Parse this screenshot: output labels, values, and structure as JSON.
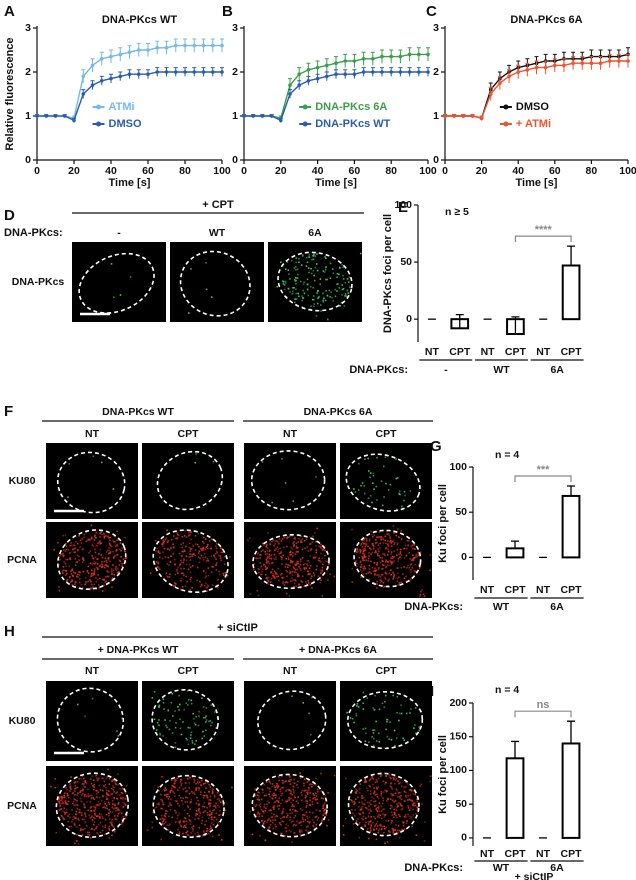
{
  "chart_data": [
    {
      "type": "line",
      "panel": "A",
      "title": "DNA-PKcs WT",
      "xlabel": "Time [s]",
      "ylabel": "Relative fluorescence",
      "x": [
        0,
        5,
        10,
        15,
        20,
        25,
        30,
        35,
        40,
        45,
        50,
        55,
        60,
        65,
        70,
        75,
        80,
        85,
        90,
        95,
        100
      ],
      "xlim": [
        0,
        100
      ],
      "xticks": [
        0,
        20,
        40,
        60,
        80,
        100
      ],
      "ylim": [
        0,
        3
      ],
      "yticks": [
        0,
        1,
        2,
        3
      ],
      "legend": "lower right",
      "series": [
        {
          "name": "ATMi",
          "color": "#74b9e7",
          "values": [
            1,
            1,
            1,
            1,
            0.95,
            1.9,
            2.15,
            2.3,
            2.35,
            2.4,
            2.45,
            2.5,
            2.5,
            2.55,
            2.55,
            2.6,
            2.6,
            2.6,
            2.6,
            2.6,
            2.6
          ],
          "errors": [
            0.03,
            0.03,
            0.03,
            0.03,
            0.05,
            0.15,
            0.15,
            0.15,
            0.15,
            0.15,
            0.15,
            0.15,
            0.15,
            0.15,
            0.15,
            0.15,
            0.15,
            0.15,
            0.15,
            0.15,
            0.15
          ]
        },
        {
          "name": "DMSO",
          "color": "#2a5db0",
          "values": [
            1,
            1,
            1,
            1,
            0.9,
            1.5,
            1.7,
            1.8,
            1.85,
            1.9,
            1.95,
            1.95,
            1.95,
            2,
            2,
            2,
            2,
            2,
            2,
            2,
            2
          ],
          "errors": [
            0.03,
            0.03,
            0.03,
            0.03,
            0.05,
            0.1,
            0.1,
            0.1,
            0.1,
            0.1,
            0.1,
            0.1,
            0.1,
            0.1,
            0.1,
            0.1,
            0.1,
            0.1,
            0.1,
            0.1,
            0.1
          ]
        }
      ]
    },
    {
      "type": "line",
      "panel": "B",
      "xlabel": "Time [s]",
      "x": [
        0,
        5,
        10,
        15,
        20,
        25,
        30,
        35,
        40,
        45,
        50,
        55,
        60,
        65,
        70,
        75,
        80,
        85,
        90,
        95,
        100
      ],
      "xlim": [
        0,
        100
      ],
      "xticks": [
        0,
        20,
        40,
        60,
        80,
        100
      ],
      "ylim": [
        0,
        3
      ],
      "yticks": [
        0,
        1,
        2,
        3
      ],
      "legend": "lower right",
      "series": [
        {
          "name": "DNA-PKcs 6A",
          "color": "#3c9e4a",
          "values": [
            1,
            1,
            1,
            1,
            0.95,
            1.7,
            1.95,
            2.05,
            2.1,
            2.15,
            2.2,
            2.25,
            2.25,
            2.3,
            2.3,
            2.35,
            2.35,
            2.35,
            2.4,
            2.4,
            2.4
          ],
          "errors": [
            0.03,
            0.03,
            0.03,
            0.03,
            0.05,
            0.15,
            0.15,
            0.15,
            0.15,
            0.15,
            0.15,
            0.15,
            0.15,
            0.15,
            0.15,
            0.15,
            0.15,
            0.15,
            0.15,
            0.15,
            0.15
          ]
        },
        {
          "name": "DNA-PKcs WT",
          "color": "#2a5db0",
          "values": [
            1,
            1,
            1,
            1,
            0.9,
            1.5,
            1.7,
            1.8,
            1.85,
            1.9,
            1.95,
            1.95,
            1.95,
            2,
            2,
            2,
            2,
            2,
            2,
            2,
            2
          ],
          "errors": [
            0.03,
            0.03,
            0.03,
            0.03,
            0.05,
            0.1,
            0.1,
            0.1,
            0.1,
            0.1,
            0.1,
            0.1,
            0.1,
            0.1,
            0.1,
            0.1,
            0.1,
            0.1,
            0.1,
            0.1,
            0.1
          ]
        }
      ]
    },
    {
      "type": "line",
      "panel": "C",
      "title": "DNA-PKcs 6A",
      "xlabel": "Time [s]",
      "x": [
        0,
        5,
        10,
        15,
        20,
        25,
        30,
        35,
        40,
        45,
        50,
        55,
        60,
        65,
        70,
        75,
        80,
        85,
        90,
        95,
        100
      ],
      "xlim": [
        0,
        100
      ],
      "xticks": [
        0,
        20,
        40,
        60,
        80,
        100
      ],
      "ylim": [
        0,
        3
      ],
      "yticks": [
        0,
        1,
        2,
        3
      ],
      "legend": "lower right",
      "series": [
        {
          "name": "DMSO",
          "color": "#111111",
          "values": [
            1,
            1,
            1,
            1,
            0.95,
            1.6,
            1.85,
            2,
            2.1,
            2.15,
            2.2,
            2.25,
            2.25,
            2.3,
            2.3,
            2.3,
            2.35,
            2.35,
            2.35,
            2.35,
            2.4
          ],
          "errors": [
            0.03,
            0.03,
            0.03,
            0.03,
            0.05,
            0.15,
            0.15,
            0.15,
            0.15,
            0.15,
            0.15,
            0.15,
            0.15,
            0.15,
            0.15,
            0.15,
            0.15,
            0.15,
            0.15,
            0.15,
            0.15
          ]
        },
        {
          "name": "+ ATMi",
          "color": "#f0532e",
          "values": [
            1,
            1,
            1,
            1,
            0.95,
            1.5,
            1.75,
            1.9,
            2,
            2.05,
            2.1,
            2.1,
            2.15,
            2.15,
            2.2,
            2.2,
            2.2,
            2.2,
            2.25,
            2.25,
            2.25
          ],
          "errors": [
            0.03,
            0.03,
            0.03,
            0.03,
            0.05,
            0.15,
            0.15,
            0.15,
            0.15,
            0.15,
            0.15,
            0.15,
            0.15,
            0.15,
            0.15,
            0.15,
            0.15,
            0.15,
            0.15,
            0.15,
            0.15
          ]
        }
      ]
    },
    {
      "type": "bar",
      "panel": "E",
      "ylabel": "DNA-PKcs foci per cell",
      "annotation": "n ≥ 5",
      "significance": "****",
      "categories": [
        "NT",
        "CPT",
        "NT",
        "CPT",
        "NT",
        "CPT"
      ],
      "values": [
        0,
        -8,
        0,
        -13,
        0,
        47
      ],
      "errors": [
        0,
        12,
        0,
        15,
        0,
        17
      ],
      "colors": [
        "#000000",
        "#ffffff",
        "#000000",
        "#ffffff",
        "#000000",
        "#ffffff"
      ],
      "ylim": [
        -20,
        100
      ],
      "yticks": [
        0,
        50,
        100
      ],
      "group_title": "DNA-PKcs:",
      "groups": [
        "-",
        "WT",
        "6A"
      ]
    },
    {
      "type": "bar",
      "panel": "G",
      "ylabel": "Ku foci per cell",
      "annotation": "n = 4",
      "significance": "***",
      "categories": [
        "NT",
        "CPT",
        "NT",
        "CPT"
      ],
      "values": [
        0,
        10,
        0,
        68
      ],
      "errors": [
        0,
        8,
        0,
        11
      ],
      "colors": [
        "#000000",
        "#ffffff",
        "#000000",
        "#ffffff"
      ],
      "ylim": [
        -25,
        100
      ],
      "yticks": [
        0,
        50,
        100
      ],
      "group_title": "DNA-PKcs:",
      "groups": [
        "WT",
        "6A"
      ]
    },
    {
      "type": "bar",
      "panel": "I",
      "ylabel": "Ku foci per cell",
      "annotation": "n = 4",
      "significance": "ns",
      "categories": [
        "NT",
        "CPT",
        "NT",
        "CPT"
      ],
      "values": [
        0,
        118,
        0,
        140
      ],
      "errors": [
        0,
        25,
        0,
        33
      ],
      "colors": [
        "#000000",
        "#ffffff",
        "#000000",
        "#ffffff"
      ],
      "ylim": [
        -12,
        200
      ],
      "yticks": [
        0,
        50,
        100,
        150,
        200
      ],
      "group_title": "DNA-PKcs:",
      "groups": [
        "WT",
        "6A"
      ],
      "footnote": "+ siCtIP"
    }
  ],
  "image_panels": [
    {
      "panel": "D",
      "header": "+ CPT",
      "row_title": "DNA-PKcs:",
      "columns": [
        "-",
        "WT",
        "6A"
      ],
      "rows": [
        "DNA-PKcs"
      ]
    },
    {
      "panel": "F",
      "groups": [
        "DNA-PKcs WT",
        "DNA-PKcs 6A"
      ],
      "columns": [
        "NT",
        "CPT",
        "NT",
        "CPT"
      ],
      "rows": [
        "KU80",
        "PCNA"
      ]
    },
    {
      "panel": "H",
      "header": "+ siCtIP",
      "groups": [
        "+ DNA-PKcs WT",
        "+ DNA-PKcs 6A"
      ],
      "columns": [
        "NT",
        "CPT",
        "NT",
        "CPT"
      ],
      "rows": [
        "KU80",
        "PCNA"
      ]
    }
  ]
}
